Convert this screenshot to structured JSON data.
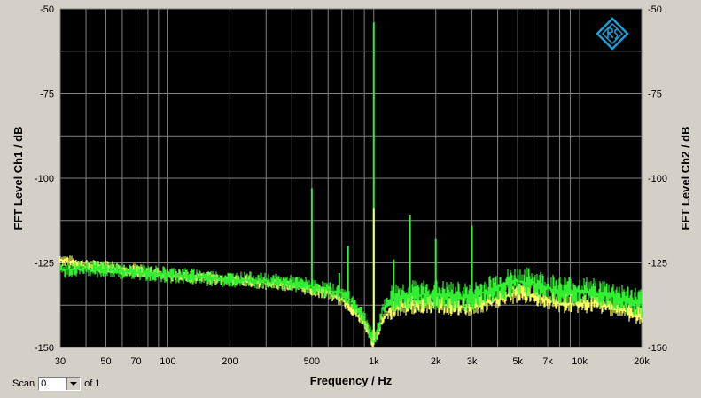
{
  "chart_data": {
    "type": "line",
    "xscale": "log",
    "xlim": [
      30,
      20000
    ],
    "ylim": [
      -150,
      -50
    ],
    "xlabel": "Frequency / Hz",
    "ylabel_left": "FFT Level Ch1 / dB",
    "ylabel_right": "FFT Level Ch2 / dB",
    "x_ticks": [
      30,
      50,
      70,
      100,
      200,
      500,
      1000,
      2000,
      3000,
      5000,
      7000,
      10000,
      20000
    ],
    "x_tick_labels": [
      "30",
      "50",
      "70",
      "100",
      "200",
      "500",
      "1k",
      "2k",
      "3k",
      "5k",
      "7k",
      "10k",
      "20k"
    ],
    "y_ticks": [
      -50,
      -75,
      -100,
      -125,
      -150
    ],
    "y_tick_labels": [
      "-50",
      "-75",
      "-100",
      "-125",
      "-150"
    ],
    "grid": true,
    "series": [
      {
        "color": "#ffff66",
        "x": [
          30,
          35,
          40,
          50,
          60,
          70,
          80,
          100,
          130,
          160,
          200,
          250,
          300,
          400,
          500,
          600,
          700,
          800,
          900,
          950,
          1000,
          1050,
          1100,
          1200,
          1300,
          1500,
          1800,
          2000,
          2500,
          3000,
          3500,
          4000,
          5000,
          6000,
          7000,
          8000,
          10000,
          12000,
          15000,
          20000
        ],
        "y": [
          -124,
          -125,
          -126,
          -126,
          -127,
          -127,
          -128,
          -128.5,
          -129,
          -129.5,
          -130,
          -130.5,
          -131,
          -131.5,
          -133,
          -134,
          -136,
          -139,
          -143,
          -146,
          -149,
          -146,
          -142,
          -139,
          -138,
          -137.5,
          -137,
          -137,
          -138,
          -138,
          -137,
          -135.5,
          -134,
          -134.5,
          -136,
          -137,
          -137,
          -137,
          -138,
          -141
        ]
      },
      {
        "color": "#33ee33",
        "x": [
          30,
          35,
          40,
          50,
          60,
          70,
          80,
          100,
          130,
          160,
          200,
          250,
          300,
          400,
          500,
          600,
          700,
          800,
          900,
          950,
          1000,
          1050,
          1100,
          1200,
          1300,
          1500,
          1800,
          2000,
          2500,
          3000,
          3500,
          4000,
          5000,
          6000,
          7000,
          8000,
          10000,
          12000,
          15000,
          20000
        ],
        "y": [
          -127,
          -127,
          -127,
          -127,
          -127.5,
          -128,
          -128,
          -128.5,
          -129,
          -129.5,
          -130,
          -130,
          -130.5,
          -131,
          -132,
          -133,
          -134,
          -137,
          -141,
          -145,
          -148,
          -144,
          -139,
          -136,
          -135,
          -134.5,
          -134.5,
          -134.5,
          -135,
          -135,
          -133.5,
          -132,
          -130.5,
          -131,
          -132.5,
          -133,
          -133.5,
          -134,
          -135,
          -137
        ]
      }
    ],
    "peaks": [
      {
        "x": 500,
        "y": -103
      },
      {
        "x": 680,
        "y": -128
      },
      {
        "x": 750,
        "y": -120
      },
      {
        "x": 1000,
        "y": -54
      },
      {
        "x": 1000,
        "y": -109,
        "color": "#ffff66"
      },
      {
        "x": 1250,
        "y": -124
      },
      {
        "x": 1500,
        "y": -111
      },
      {
        "x": 2000,
        "y": -118
      },
      {
        "x": 3000,
        "y": -114
      },
      {
        "x": 5000,
        "y": -132
      }
    ]
  },
  "scan": {
    "label": "Scan",
    "value": "0",
    "of_label": "of 1"
  },
  "colors": {
    "plot_background": "#000000",
    "frame": "#d4d0c8",
    "grid": "#808080",
    "logo": "#1aa0d8"
  }
}
